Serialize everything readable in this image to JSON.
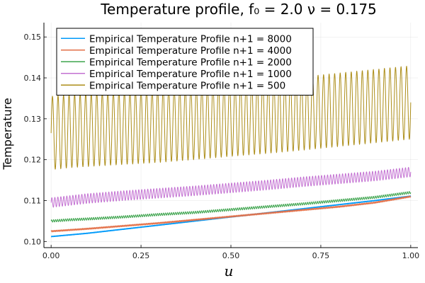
{
  "chart_data": {
    "type": "line",
    "title": "Temperature profile, f₀ = 2.0 ν = 0.175",
    "xlabel": "u",
    "ylabel": "Temperature",
    "xlim": [
      -0.02,
      1.02
    ],
    "ylim": [
      0.0985,
      0.1535
    ],
    "xticks": [
      0.0,
      0.25,
      0.5,
      0.75,
      1.0
    ],
    "xtick_labels": [
      "0.00",
      "0.25",
      "0.50",
      "0.75",
      "1.00"
    ],
    "yticks": [
      0.1,
      0.11,
      0.12,
      0.13,
      0.14,
      0.15
    ],
    "ytick_labels": [
      "0.10",
      "0.11",
      "0.12",
      "0.13",
      "0.14",
      "0.15"
    ],
    "grid": true,
    "legend_position": "top-left",
    "series": [
      {
        "name": "Empirical Temperature Profile n+1 = 8000",
        "color": "#009AFA",
        "x": [
          0.0,
          0.05,
          0.1,
          0.2,
          0.3,
          0.4,
          0.5,
          0.6,
          0.7,
          0.8,
          0.9,
          1.0
        ],
        "values": [
          0.1012,
          0.1016,
          0.102,
          0.103,
          0.104,
          0.105,
          0.106,
          0.107,
          0.108,
          0.109,
          0.11,
          0.1111
        ],
        "oscillation": {
          "amplitude": 0.00012,
          "cycles": 600
        }
      },
      {
        "name": "Empirical Temperature Profile n+1 = 4000",
        "color": "#E36F47",
        "x": [
          0.0,
          0.05,
          0.1,
          0.2,
          0.3,
          0.4,
          0.5,
          0.6,
          0.7,
          0.8,
          0.9,
          1.0
        ],
        "values": [
          0.1025,
          0.1028,
          0.1031,
          0.1038,
          0.1045,
          0.1053,
          0.1061,
          0.1069,
          0.1077,
          0.1085,
          0.1095,
          0.111
        ],
        "oscillation": {
          "amplitude": 0.0002,
          "cycles": 300
        }
      },
      {
        "name": "Empirical Temperature Profile n+1 = 2000",
        "color": "#3EA44E",
        "x": [
          0.0,
          0.05,
          0.1,
          0.2,
          0.3,
          0.4,
          0.5,
          0.6,
          0.7,
          0.8,
          0.9,
          1.0
        ],
        "values": [
          0.105,
          0.1053,
          0.1055,
          0.106,
          0.1066,
          0.1071,
          0.1078,
          0.1085,
          0.1092,
          0.11,
          0.1108,
          0.112
        ],
        "oscillation": {
          "amplitude": 0.0003,
          "cycles": 180
        }
      },
      {
        "name": "Empirical Temperature Profile n+1 = 1000",
        "color": "#C371D2",
        "x": [
          0.0,
          0.05,
          0.1,
          0.2,
          0.3,
          0.4,
          0.5,
          0.6,
          0.7,
          0.8,
          0.9,
          1.0
        ],
        "values": [
          0.1095,
          0.11,
          0.1105,
          0.1112,
          0.1118,
          0.1124,
          0.1131,
          0.1138,
          0.1146,
          0.1153,
          0.116,
          0.117
        ],
        "oscillation": {
          "amplitude": 0.0012,
          "cycles": 120
        }
      },
      {
        "name": "Empirical Temperature Profile n+1 = 500",
        "color": "#AC8D18",
        "x": [
          0.0,
          0.05,
          0.1,
          0.2,
          0.3,
          0.4,
          0.5,
          0.6,
          0.7,
          0.8,
          0.9,
          1.0
        ],
        "values": [
          0.1265,
          0.127,
          0.1273,
          0.1278,
          0.1283,
          0.129,
          0.1298,
          0.1305,
          0.1313,
          0.1322,
          0.1331,
          0.134
        ],
        "oscillation": {
          "amplitude": 0.009,
          "cycles": 65
        }
      }
    ]
  }
}
